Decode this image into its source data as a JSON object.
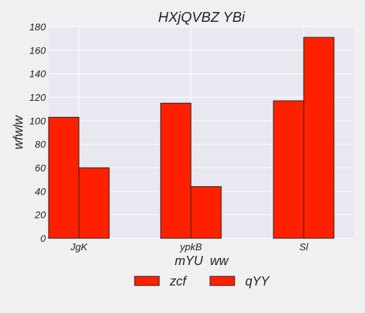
{
  "chart_data": {
    "type": "bar",
    "title": "HXjQVBZ YBi",
    "xlabel": "mYU  ww",
    "ylabel": "wfwlw",
    "categories": [
      "JgK",
      "ypkB",
      "Sl"
    ],
    "series": [
      {
        "name": "zcf",
        "values": [
          103,
          115,
          117
        ],
        "color": "#ff2000"
      },
      {
        "name": "qYY",
        "values": [
          60,
          44,
          171
        ],
        "color": "#ff2000"
      }
    ],
    "ylim": [
      0,
      180
    ],
    "yticks": [
      0,
      20,
      40,
      60,
      80,
      100,
      120,
      140,
      160,
      180
    ],
    "grid": true,
    "legend": "bottom-center",
    "colors": {
      "background": "#f0f0f0",
      "plot_background": "#e8e8f0",
      "grid": "#ffffff",
      "bar_edge": "#222222"
    }
  }
}
